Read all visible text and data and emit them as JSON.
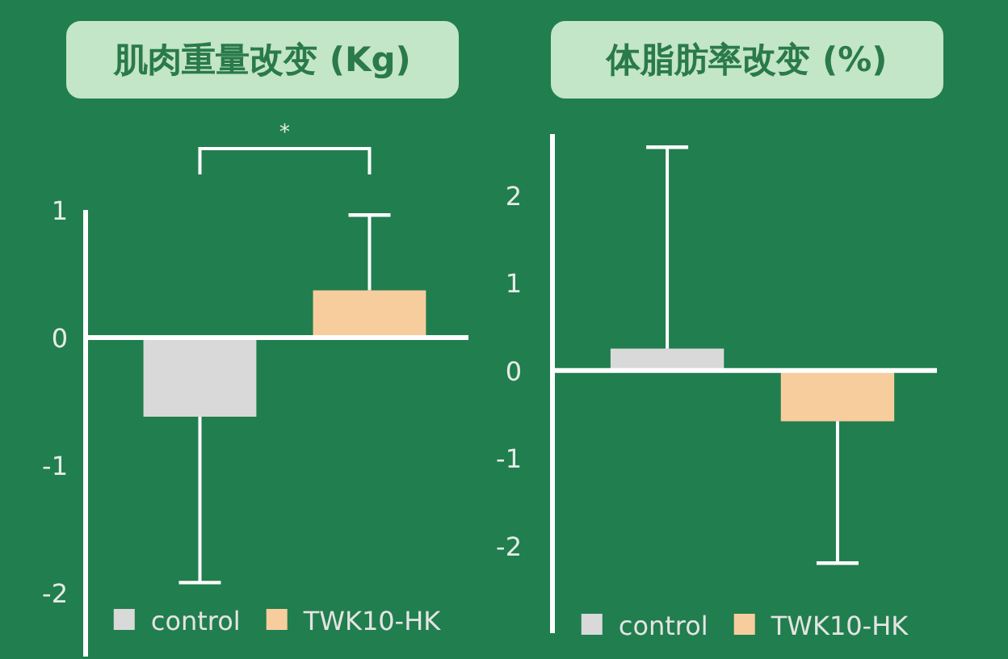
{
  "chart_data": [
    {
      "type": "bar",
      "title": "肌肉重量改变 (Kg)",
      "categories": [
        null
      ],
      "series": [
        {
          "name": "control",
          "color": "#d9d9d9",
          "values": [
            -0.62
          ],
          "errors": [
            [
              -1.92,
              -0.62
            ]
          ]
        },
        {
          "name": "TWK10-HK",
          "color": "#f8cd9e",
          "values": [
            0.37
          ],
          "errors": [
            [
              0.37,
              0.96
            ]
          ]
        }
      ],
      "ylim": [
        -2.5,
        1
      ],
      "yticks": [
        -2,
        -1,
        0,
        1
      ],
      "legend": "bottom",
      "annotations": [
        "*"
      ]
    },
    {
      "type": "bar",
      "title": "体脂肪率改变 (%)",
      "categories": [
        null
      ],
      "series": [
        {
          "name": "control",
          "color": "#d9d9d9",
          "values": [
            0.25
          ],
          "errors": [
            [
              0.25,
              2.55
            ]
          ]
        },
        {
          "name": "TWK10-HK",
          "color": "#f8cd9e",
          "values": [
            -0.58
          ],
          "errors": [
            [
              -2.2,
              -0.58
            ]
          ]
        }
      ],
      "ylim": [
        -3,
        2.7
      ],
      "yticks": [
        -2,
        -1,
        0,
        1,
        2
      ],
      "legend": "bottom"
    }
  ]
}
